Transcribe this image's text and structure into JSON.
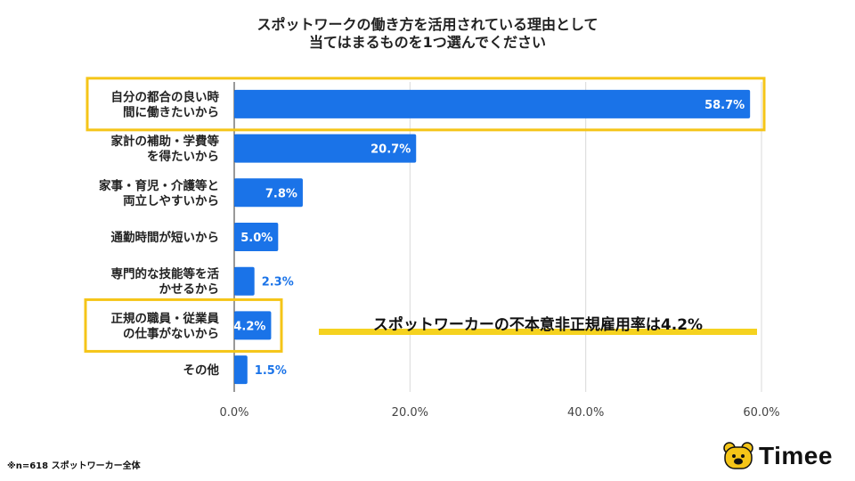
{
  "title_lines": [
    "スポットワークの働き方を活用されている理由として",
    "当てはまるものを1つ選んでください"
  ],
  "chart_data": {
    "type": "bar",
    "orientation": "horizontal",
    "categories": [
      [
        "自分の都合の良い時",
        "間に働きたいから"
      ],
      [
        "家計の補助・学費等",
        "を得たいから"
      ],
      [
        "家事・育児・介護等と",
        "両立しやすいから"
      ],
      [
        "通勤時間が短いから"
      ],
      [
        "専門的な技能等を活",
        "かせるから"
      ],
      [
        "正規の職員・従業員",
        "の仕事がないから"
      ],
      [
        "その他"
      ]
    ],
    "values": [
      58.7,
      20.7,
      7.8,
      5.0,
      2.3,
      4.2,
      1.5
    ],
    "value_labels": [
      "58.7%",
      "20.7%",
      "7.8%",
      "5.0%",
      "2.3%",
      "4.2%",
      "1.5%"
    ],
    "xlim": [
      0,
      60
    ],
    "xticks": [
      0,
      20,
      40,
      60
    ],
    "xtick_labels": [
      "0.0%",
      "20.0%",
      "40.0%",
      "60.0%"
    ],
    "grid": true,
    "highlighted_categories": [
      0,
      5
    ],
    "colors": {
      "bar": "#1a73e8",
      "highlight": "#f5c518",
      "grid": "#d9d9d9",
      "label_outside": "#1a73e8",
      "label_inside": "#ffffff"
    }
  },
  "callout": {
    "text": "スポットワーカーの不本意非正規雇用率は4.2%",
    "underline_color": "#f5d21f"
  },
  "footnote": "※n=618 スポットワーカー全体",
  "logo": {
    "text": "Timee",
    "icon": "bear-face-icon",
    "color": "#f5c518"
  }
}
